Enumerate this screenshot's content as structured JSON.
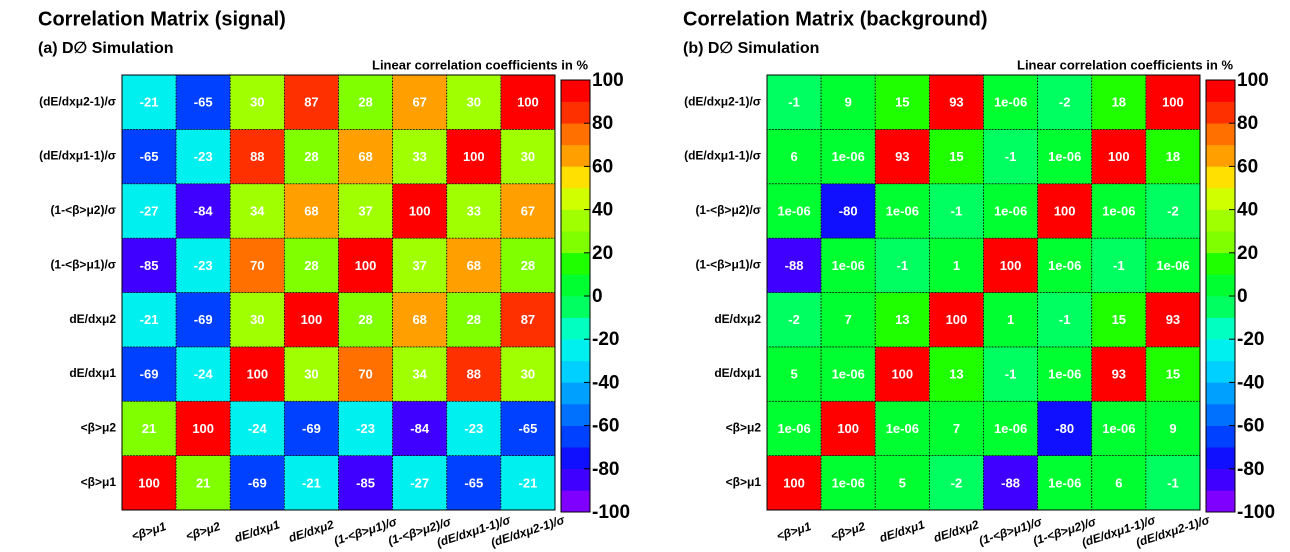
{
  "chart_data": [
    {
      "type": "heatmap",
      "title": "Correlation Matrix (signal)",
      "subtitle": "(a) D∅ Simulation",
      "colorbar_label": "Linear correlation coefficients in %",
      "x_categories": [
        "<β>μ1",
        "<β>μ2",
        "dE/dxμ1",
        "dE/dxμ2",
        "(1-<β>μ1)/σ",
        "(1-<β>μ2)/σ",
        "(dE/dxμ1-1)/σ",
        "(dE/dxμ2-1)/σ"
      ],
      "y_categories": [
        "<β>μ1",
        "<β>μ2",
        "dE/dxμ1",
        "dE/dxμ2",
        "(1-<β>μ1)/σ",
        "(1-<β>μ2)/σ",
        "(dE/dxμ1-1)/σ",
        "(dE/dxμ2-1)/σ"
      ],
      "values": [
        [
          100,
          21,
          -69,
          -21,
          -85,
          -27,
          -65,
          -21
        ],
        [
          21,
          100,
          -24,
          -69,
          -23,
          -84,
          -23,
          -65
        ],
        [
          -69,
          -24,
          100,
          30,
          70,
          34,
          88,
          30
        ],
        [
          -21,
          -69,
          30,
          100,
          28,
          68,
          28,
          87
        ],
        [
          -85,
          -23,
          70,
          28,
          100,
          37,
          68,
          28
        ],
        [
          -27,
          -84,
          34,
          68,
          37,
          100,
          33,
          67
        ],
        [
          -65,
          -23,
          88,
          28,
          68,
          33,
          100,
          30
        ],
        [
          -21,
          -65,
          30,
          87,
          28,
          67,
          30,
          100
        ]
      ],
      "zlim": [
        -100,
        100
      ],
      "zticks": [
        -100,
        -80,
        -60,
        -40,
        -20,
        0,
        20,
        40,
        60,
        80,
        100
      ],
      "palette": [
        "#8000ff",
        "#4000ff",
        "#1010ff",
        "#0040ff",
        "#0070ff",
        "#00a0ff",
        "#00d0ff",
        "#00f0f0",
        "#00ffc0",
        "#00ff60",
        "#00ff30",
        "#20ff00",
        "#80ff00",
        "#a0ff00",
        "#d0ff00",
        "#ffe000",
        "#ffa000",
        "#ff7000",
        "#ff3000",
        "#ff0000"
      ]
    },
    {
      "type": "heatmap",
      "title": "Correlation Matrix (background)",
      "subtitle": "(b) D∅ Simulation",
      "colorbar_label": "Linear correlation coefficients in %",
      "x_categories": [
        "<β>μ1",
        "<β>μ2",
        "dE/dxμ1",
        "dE/dxμ2",
        "(1-<β>μ1)/σ",
        "(1-<β>μ2)/σ",
        "(dE/dxμ1-1)/σ",
        "(dE/dxμ2-1)/σ"
      ],
      "y_categories": [
        "<β>μ1",
        "<β>μ2",
        "dE/dxμ1",
        "dE/dxμ2",
        "(1-<β>μ1)/σ",
        "(1-<β>μ2)/σ",
        "(dE/dxμ1-1)/σ",
        "(dE/dxμ2-1)/σ"
      ],
      "values": [
        [
          100,
          1e-06,
          5,
          -2,
          -88,
          1e-06,
          6,
          -1
        ],
        [
          1e-06,
          100,
          1e-06,
          7,
          1e-06,
          -80,
          1e-06,
          9
        ],
        [
          5,
          1e-06,
          100,
          13,
          -1,
          1e-06,
          93,
          15
        ],
        [
          -2,
          7,
          13,
          100,
          1,
          -1,
          15,
          93
        ],
        [
          -88,
          1e-06,
          -1,
          1,
          100,
          1e-06,
          -1,
          1e-06
        ],
        [
          1e-06,
          -80,
          1e-06,
          -1,
          1e-06,
          100,
          1e-06,
          -2
        ],
        [
          6,
          1e-06,
          93,
          15,
          -1,
          1e-06,
          100,
          18
        ],
        [
          -1,
          9,
          15,
          93,
          1e-06,
          -2,
          18,
          100
        ]
      ],
      "value_labels": [
        [
          "100",
          "1e-06",
          "5",
          "-2",
          "-88",
          "1e-06",
          "6",
          "-1"
        ],
        [
          "1e-06",
          "100",
          "1e-06",
          "7",
          "1e-06",
          "-80",
          "1e-06",
          "9"
        ],
        [
          "5",
          "1e-06",
          "100",
          "13",
          "-1",
          "1e-06",
          "93",
          "15"
        ],
        [
          "-2",
          "7",
          "13",
          "100",
          "1",
          "-1",
          "15",
          "93"
        ],
        [
          "-88",
          "1e-06",
          "-1",
          "1",
          "100",
          "1e-06",
          "-1",
          "1e-06"
        ],
        [
          "1e-06",
          "-80",
          "1e-06",
          "-1",
          "1e-06",
          "100",
          "1e-06",
          "-2"
        ],
        [
          "6",
          "1e-06",
          "93",
          "15",
          "-1",
          "1e-06",
          "100",
          "18"
        ],
        [
          "-1",
          "9",
          "15",
          "93",
          "1e-06",
          "-2",
          "18",
          "100"
        ]
      ],
      "zlim": [
        -100,
        100
      ],
      "zticks": [
        -100,
        -80,
        -60,
        -40,
        -20,
        0,
        20,
        40,
        60,
        80,
        100
      ],
      "palette": [
        "#8000ff",
        "#4000ff",
        "#1010ff",
        "#0040ff",
        "#0070ff",
        "#00a0ff",
        "#00d0ff",
        "#00f0f0",
        "#00ffc0",
        "#00ff60",
        "#00ff30",
        "#20ff00",
        "#80ff00",
        "#a0ff00",
        "#d0ff00",
        "#ffe000",
        "#ffa000",
        "#ff7000",
        "#ff3000",
        "#ff0000"
      ]
    }
  ]
}
